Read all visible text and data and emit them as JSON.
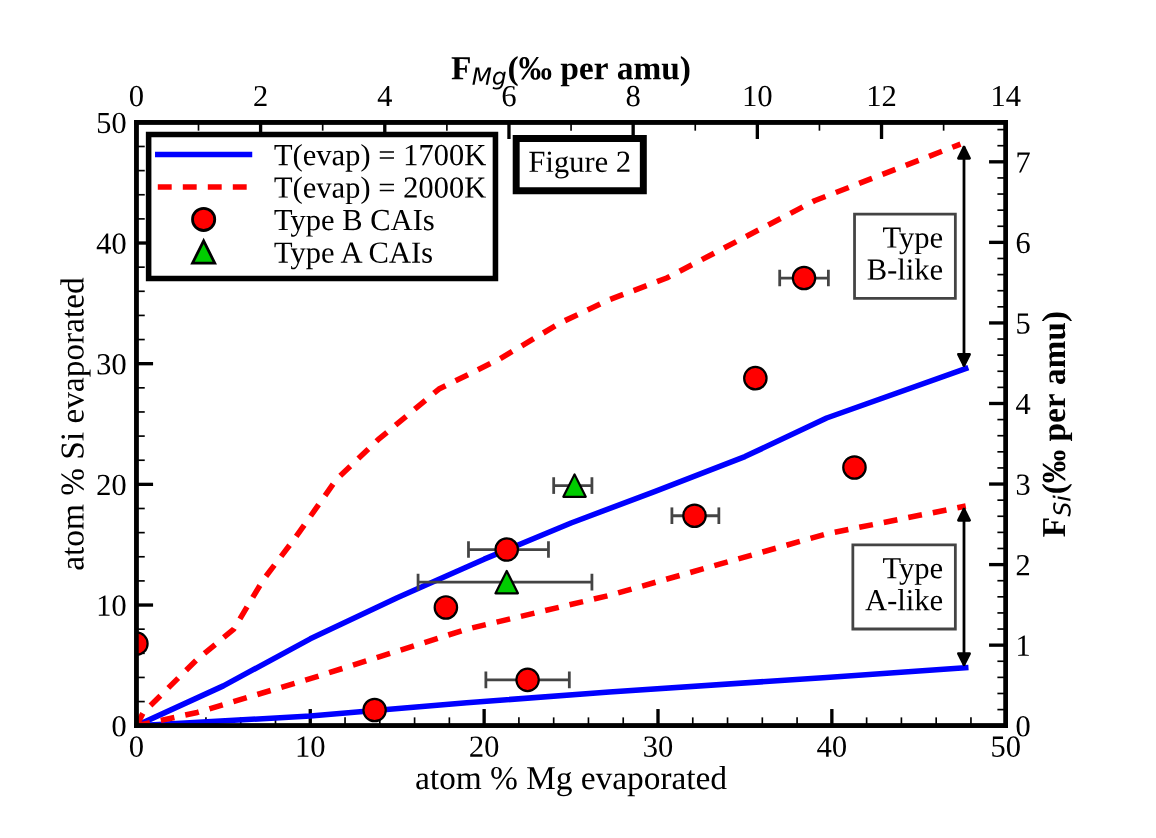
{
  "chart_data": {
    "type": "line",
    "xlabel": "atom % Mg evaporated",
    "ylabel": "atom % Si evaporated",
    "x2label": "F$_{Mg}$(‰ per amu)",
    "y2label": "F$_{Si}$(‰ per amu)",
    "xlim": [
      0,
      50
    ],
    "xticks": [
      0,
      10,
      20,
      30,
      40,
      50
    ],
    "ylim": [
      0,
      50
    ],
    "yticks": [
      0,
      10,
      20,
      30,
      40,
      50
    ],
    "x2lim": [
      0,
      14
    ],
    "x2ticks": [
      0,
      2,
      4,
      6,
      8,
      10,
      12,
      14
    ],
    "y2lim": [
      0,
      7.49
    ],
    "y2ticks": [
      0,
      1,
      2,
      3,
      4,
      5,
      6,
      7
    ],
    "grid": false,
    "legend": "top left",
    "annotations": [
      "Figure 2",
      {
        "text": "Type\nB-like",
        "x": 47.6,
        "y": 29.6
      },
      {
        "text": "Type\nA-like",
        "x": 47.6,
        "y": 4.8
      }
    ],
    "series": [
      {
        "name": "T(evap) = 1700K",
        "color": "#0000ff",
        "line_style": "solid",
        "x": [
          0,
          5,
          10,
          15,
          20,
          25,
          29.8,
          35,
          39.7,
          47.7
        ],
        "values": [
          0,
          3.3,
          7.2,
          10.6,
          13.8,
          16.8,
          19.4,
          22.3,
          25.5,
          29.6
        ]
      },
      {
        "name": "T(evap) = 2000K",
        "color": "#ff0000",
        "line_style": "dashed",
        "x": [
          0,
          0.4,
          3.5,
          5.6,
          7.3,
          9.1,
          11.5,
          13.9,
          17.4,
          20.9,
          24.4,
          27.2,
          30.5,
          39,
          47.4
        ],
        "values": [
          0,
          1.1,
          5.5,
          8.0,
          12.1,
          15.5,
          20.4,
          23.7,
          27.9,
          30.4,
          33.4,
          35.3,
          37.1,
          43.5,
          48.2
        ]
      },
      {
        "color": "#0000ff",
        "line_style": "solid",
        "x": [
          0,
          10,
          13.2,
          19,
          27.2,
          39.7,
          47.7
        ],
        "values": [
          0,
          0.8,
          1.2,
          1.9,
          2.8,
          4.0,
          4.8
        ]
      },
      {
        "color": "#ff0000",
        "line_style": "dashed",
        "x": [
          0,
          3.5,
          10,
          19,
          27.2,
          39.7,
          47.7
        ],
        "values": [
          0,
          1.1,
          3.9,
          8.0,
          10.8,
          15.9,
          18.2
        ]
      },
      {
        "name": "Type B CAIs",
        "type": "scatter",
        "color": "#ff0000",
        "marker": "circle",
        "x": [
          0,
          13.7,
          22.5,
          17.8,
          21.3,
          32.1,
          35.6,
          41.3,
          38.4
        ],
        "values": [
          6.8,
          1.3,
          3.8,
          9.8,
          14.6,
          17.4,
          28.8,
          21.4,
          37.1
        ],
        "xerrors": [
          null,
          null,
          [
            20.1,
            24.9
          ],
          null,
          [
            19.1,
            23.7
          ],
          [
            30.8,
            33.5
          ],
          null,
          null,
          [
            37.0,
            39.8
          ]
        ]
      },
      {
        "name": "Type A CAIs",
        "type": "scatter",
        "color": "#00cc00",
        "marker": "triangle",
        "x": [
          21.3,
          25.2
        ],
        "values": [
          11.9,
          19.9
        ],
        "xerrors": [
          [
            16.2,
            26.2
          ],
          [
            24.0,
            26.2
          ]
        ]
      }
    ]
  }
}
